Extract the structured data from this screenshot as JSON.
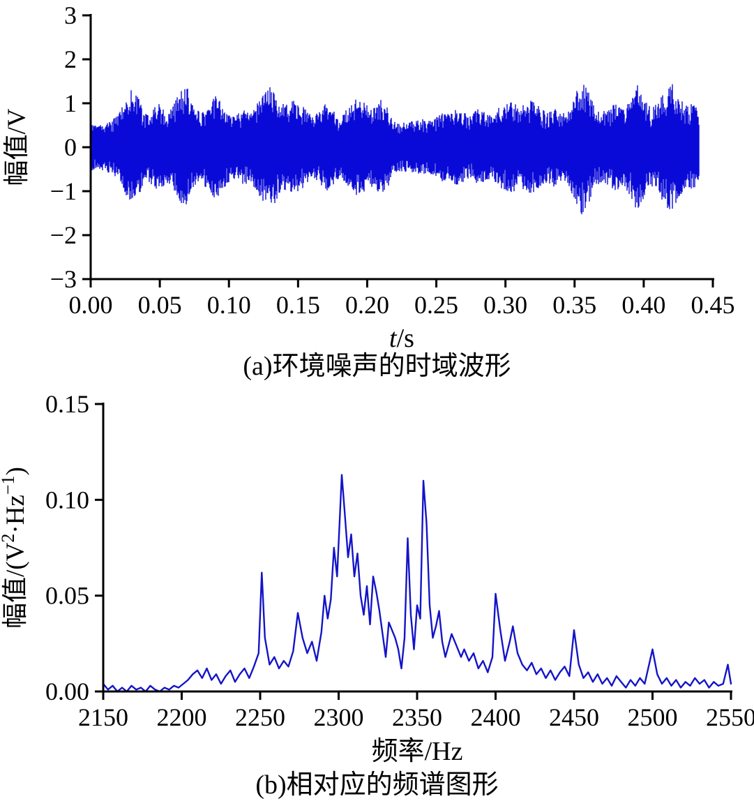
{
  "figure": {
    "background": "#ffffff",
    "axis_color": "#000000"
  },
  "chart_data": [
    {
      "type": "line",
      "subtype": "waveform",
      "caption": "(a)环境噪声的时域波形",
      "xlabel_em": "t",
      "xlabel": "/s",
      "ylabel_parts": [
        {
          "text": "幅值/V"
        }
      ],
      "xlim": [
        0,
        0.45
      ],
      "ylim": [
        -3,
        3
      ],
      "xticks": {
        "values": [
          0,
          0.05,
          0.1,
          0.15,
          0.2,
          0.25,
          0.3,
          0.35,
          0.4,
          0.45
        ],
        "labels": [
          "0.00",
          "0.05",
          "0.10",
          "0.15",
          "0.20",
          "0.25",
          "0.30",
          "0.35",
          "0.40",
          "0.45"
        ]
      },
      "yticks": {
        "values": [
          3,
          2,
          1,
          0,
          -1,
          -2,
          -3
        ],
        "labels": [
          "3",
          "2",
          "1",
          "0",
          "−1",
          "−2",
          "−3"
        ]
      },
      "color": "#0a0ad8",
      "grid": false,
      "legend": null,
      "envelope": {
        "t_start": 0,
        "t_step": 0.005,
        "t_end": 0.44,
        "amplitude": [
          0.55,
          0.5,
          0.55,
          0.6,
          0.75,
          1.05,
          1.35,
          1.1,
          0.75,
          0.9,
          1.0,
          0.8,
          1.0,
          1.3,
          1.35,
          0.95,
          0.8,
          1.0,
          1.2,
          1.0,
          0.8,
          0.7,
          0.9,
          0.8,
          1.0,
          1.3,
          1.45,
          1.2,
          1.0,
          1.1,
          1.0,
          0.9,
          0.7,
          0.8,
          1.0,
          0.9,
          0.7,
          0.85,
          1.05,
          1.15,
          1.0,
          0.9,
          1.1,
          0.9,
          0.6,
          0.55,
          0.6,
          0.6,
          0.65,
          0.6,
          0.7,
          0.8,
          0.75,
          0.9,
          0.8,
          0.7,
          0.9,
          0.8,
          0.7,
          0.9,
          1.0,
          1.05,
          0.9,
          1.0,
          1.1,
          0.9,
          0.8,
          0.9,
          0.8,
          0.9,
          1.2,
          1.55,
          1.3,
          0.9,
          0.8,
          0.9,
          1.0,
          0.9,
          1.1,
          1.45,
          1.2,
          0.9,
          1.0,
          1.3,
          1.5,
          1.2,
          0.95,
          1.0,
          0.85
        ]
      }
    },
    {
      "type": "line",
      "subtype": "spectrum",
      "caption": "(b)相对应的频谱图形",
      "xlabel_em": "",
      "xlabel": "频率/Hz",
      "ylabel_parts": [
        {
          "text": "幅值/(V"
        },
        {
          "text": "2",
          "sup": true
        },
        {
          "text": "·Hz"
        },
        {
          "text": "−1",
          "sup": true
        },
        {
          "text": ")"
        }
      ],
      "xlim": [
        2150,
        2550
      ],
      "ylim": [
        0,
        0.15
      ],
      "xticks": {
        "values": [
          2150,
          2200,
          2250,
          2300,
          2350,
          2400,
          2450,
          2500,
          2550
        ],
        "labels": [
          "2150",
          "2200",
          "2250",
          "2300",
          "2350",
          "2400",
          "2450",
          "2500",
          "2550"
        ]
      },
      "yticks": {
        "values": [
          0,
          0.05,
          0.1,
          0.15
        ],
        "labels": [
          "0.00",
          "0.05",
          "0.10",
          "0.15"
        ]
      },
      "color": "#1414c8",
      "grid": false,
      "legend": null,
      "points": [
        [
          2150,
          0.004
        ],
        [
          2153,
          0.001
        ],
        [
          2156,
          0.003
        ],
        [
          2159,
          0.0
        ],
        [
          2162,
          0.002
        ],
        [
          2165,
          0.0
        ],
        [
          2168,
          0.003
        ],
        [
          2171,
          0.001
        ],
        [
          2174,
          0.002
        ],
        [
          2177,
          0.0
        ],
        [
          2180,
          0.003
        ],
        [
          2183,
          0.001
        ],
        [
          2186,
          0.0
        ],
        [
          2189,
          0.002
        ],
        [
          2192,
          0.001
        ],
        [
          2195,
          0.003
        ],
        [
          2198,
          0.002
        ],
        [
          2201,
          0.004
        ],
        [
          2204,
          0.006
        ],
        [
          2207,
          0.009
        ],
        [
          2210,
          0.011
        ],
        [
          2213,
          0.007
        ],
        [
          2216,
          0.012
        ],
        [
          2219,
          0.006
        ],
        [
          2222,
          0.009
        ],
        [
          2225,
          0.004
        ],
        [
          2228,
          0.008
        ],
        [
          2231,
          0.011
        ],
        [
          2234,
          0.005
        ],
        [
          2237,
          0.009
        ],
        [
          2240,
          0.012
        ],
        [
          2243,
          0.007
        ],
        [
          2246,
          0.013
        ],
        [
          2249,
          0.02
        ],
        [
          2251,
          0.062
        ],
        [
          2253,
          0.028
        ],
        [
          2256,
          0.014
        ],
        [
          2259,
          0.018
        ],
        [
          2262,
          0.012
        ],
        [
          2265,
          0.016
        ],
        [
          2268,
          0.013
        ],
        [
          2271,
          0.021
        ],
        [
          2274,
          0.041
        ],
        [
          2277,
          0.028
        ],
        [
          2280,
          0.02
        ],
        [
          2283,
          0.026
        ],
        [
          2286,
          0.016
        ],
        [
          2289,
          0.031
        ],
        [
          2291,
          0.05
        ],
        [
          2293,
          0.038
        ],
        [
          2295,
          0.048
        ],
        [
          2297,
          0.075
        ],
        [
          2299,
          0.06
        ],
        [
          2302,
          0.113
        ],
        [
          2304,
          0.092
        ],
        [
          2306,
          0.07
        ],
        [
          2308,
          0.082
        ],
        [
          2310,
          0.06
        ],
        [
          2312,
          0.072
        ],
        [
          2314,
          0.05
        ],
        [
          2316,
          0.04
        ],
        [
          2318,
          0.055
        ],
        [
          2320,
          0.035
        ],
        [
          2322,
          0.06
        ],
        [
          2324,
          0.052
        ],
        [
          2326,
          0.042
        ],
        [
          2328,
          0.03
        ],
        [
          2330,
          0.018
        ],
        [
          2332,
          0.036
        ],
        [
          2334,
          0.032
        ],
        [
          2336,
          0.028
        ],
        [
          2338,
          0.022
        ],
        [
          2340,
          0.012
        ],
        [
          2342,
          0.028
        ],
        [
          2344,
          0.08
        ],
        [
          2346,
          0.04
        ],
        [
          2348,
          0.022
        ],
        [
          2350,
          0.045
        ],
        [
          2352,
          0.038
        ],
        [
          2354,
          0.11
        ],
        [
          2356,
          0.088
        ],
        [
          2358,
          0.045
        ],
        [
          2360,
          0.028
        ],
        [
          2362,
          0.034
        ],
        [
          2364,
          0.042
        ],
        [
          2366,
          0.026
        ],
        [
          2368,
          0.018
        ],
        [
          2370,
          0.024
        ],
        [
          2372,
          0.03
        ],
        [
          2375,
          0.024
        ],
        [
          2378,
          0.018
        ],
        [
          2380,
          0.022
        ],
        [
          2383,
          0.016
        ],
        [
          2386,
          0.02
        ],
        [
          2389,
          0.012
        ],
        [
          2392,
          0.016
        ],
        [
          2395,
          0.01
        ],
        [
          2398,
          0.018
        ],
        [
          2400,
          0.051
        ],
        [
          2403,
          0.032
        ],
        [
          2406,
          0.016
        ],
        [
          2409,
          0.026
        ],
        [
          2411,
          0.034
        ],
        [
          2414,
          0.02
        ],
        [
          2417,
          0.014
        ],
        [
          2420,
          0.011
        ],
        [
          2423,
          0.015
        ],
        [
          2426,
          0.009
        ],
        [
          2429,
          0.012
        ],
        [
          2432,
          0.007
        ],
        [
          2435,
          0.011
        ],
        [
          2438,
          0.006
        ],
        [
          2441,
          0.01
        ],
        [
          2444,
          0.013
        ],
        [
          2447,
          0.008
        ],
        [
          2450,
          0.032
        ],
        [
          2453,
          0.014
        ],
        [
          2456,
          0.007
        ],
        [
          2459,
          0.01
        ],
        [
          2462,
          0.005
        ],
        [
          2465,
          0.009
        ],
        [
          2468,
          0.004
        ],
        [
          2471,
          0.007
        ],
        [
          2474,
          0.003
        ],
        [
          2477,
          0.008
        ],
        [
          2480,
          0.005
        ],
        [
          2483,
          0.002
        ],
        [
          2486,
          0.006
        ],
        [
          2489,
          0.003
        ],
        [
          2492,
          0.007
        ],
        [
          2495,
          0.004
        ],
        [
          2500,
          0.022
        ],
        [
          2503,
          0.009
        ],
        [
          2506,
          0.004
        ],
        [
          2509,
          0.007
        ],
        [
          2512,
          0.003
        ],
        [
          2515,
          0.006
        ],
        [
          2518,
          0.002
        ],
        [
          2521,
          0.005
        ],
        [
          2524,
          0.003
        ],
        [
          2527,
          0.007
        ],
        [
          2530,
          0.004
        ],
        [
          2533,
          0.006
        ],
        [
          2536,
          0.002
        ],
        [
          2539,
          0.005
        ],
        [
          2542,
          0.003
        ],
        [
          2545,
          0.004
        ],
        [
          2548,
          0.014
        ],
        [
          2550,
          0.004
        ]
      ]
    }
  ]
}
